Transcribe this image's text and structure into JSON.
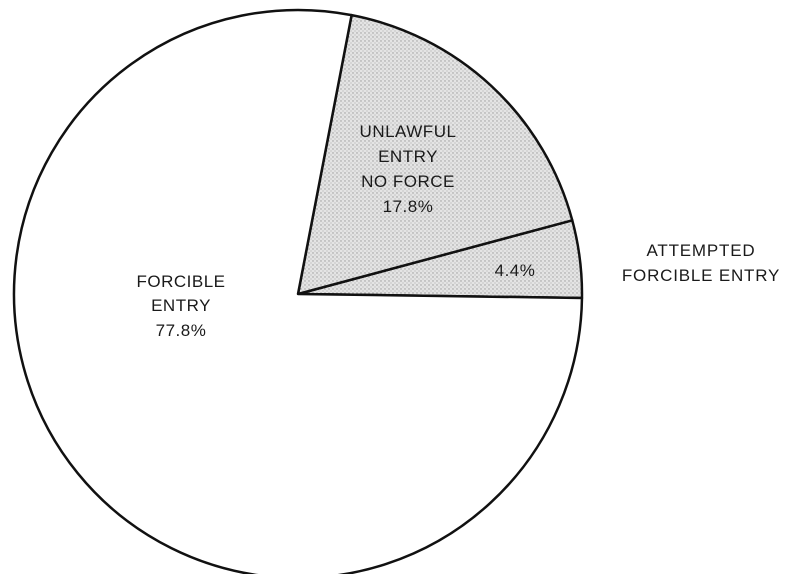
{
  "chart_data": {
    "type": "pie",
    "slices": [
      {
        "lines": [
          "FORCIBLE",
          "ENTRY"
        ],
        "value": 77.8,
        "value_label": "77.8%",
        "fill": "#ffffff"
      },
      {
        "lines": [
          "UNLAWFUL",
          "ENTRY",
          "NO FORCE"
        ],
        "value": 17.8,
        "value_label": "17.8%",
        "fill": "#d6d6d6"
      },
      {
        "lines": [],
        "value": 4.4,
        "value_label": "4.4%",
        "fill": "#d6d6d6"
      }
    ],
    "external_label": [
      "ATTEMPTED",
      "FORCIBLE ENTRY"
    ],
    "stroke": "#111111",
    "background": "#ffffff"
  }
}
